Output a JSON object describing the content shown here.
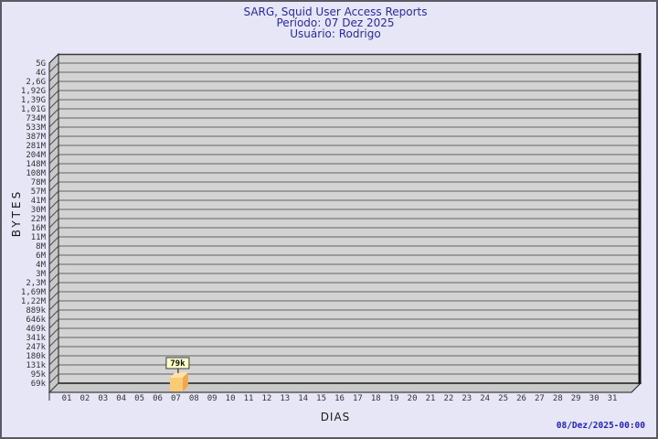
{
  "window": {
    "background": "#E6E6F6",
    "border_color": "#5A5A64"
  },
  "header": {
    "title": "SARG, Squid User Access Reports",
    "period": "Período: 07 Dez 2025",
    "user": "Usuário: Rodrigo",
    "color": "#2A2A9C"
  },
  "footer": {
    "timestamp": "08/Dez/2025-00:00",
    "color": "#2222BB"
  },
  "chart_data": {
    "type": "bar",
    "title": "SARG, Squid User Access Reports",
    "subtitle": [
      "Período: 07 Dez 2025",
      "Usuário: Rodrigo"
    ],
    "xlabel": "DIAS",
    "ylabel": "BYTES",
    "y_scale": "logarithmic-like SARG bytes scale, top to bottom",
    "y_ticks": [
      "5G",
      "4G",
      "2,6G",
      "1,92G",
      "1,39G",
      "1,01G",
      "734M",
      "533M",
      "387M",
      "281M",
      "204M",
      "148M",
      "108M",
      "78M",
      "57M",
      "41M",
      "30M",
      "22M",
      "16M",
      "11M",
      "8M",
      "6M",
      "4M",
      "3M",
      "2,3M",
      "1,69M",
      "1,22M",
      "889k",
      "646k",
      "469k",
      "341k",
      "247k",
      "180k",
      "131k",
      "95k",
      "69k"
    ],
    "x_ticks": [
      "01",
      "02",
      "03",
      "04",
      "05",
      "06",
      "07",
      "08",
      "09",
      "10",
      "11",
      "12",
      "13",
      "14",
      "15",
      "16",
      "17",
      "18",
      "19",
      "20",
      "21",
      "22",
      "23",
      "24",
      "25",
      "26",
      "27",
      "28",
      "29",
      "30",
      "31"
    ],
    "bars": [
      {
        "day": "07",
        "value_label": "79k",
        "value_bytes": 79000
      }
    ],
    "grid": true,
    "legend": "none",
    "colors": {
      "plot_bg": "#D3D3D3",
      "wall": "#C9C9C9",
      "grid_line": "#636363",
      "bar_front": "#FBCA74",
      "bar_top": "#FDE2A7",
      "bar_side": "#EEA850",
      "value_box_bg": "#FFFFC9",
      "value_box_border": "#3A3A3A"
    }
  }
}
